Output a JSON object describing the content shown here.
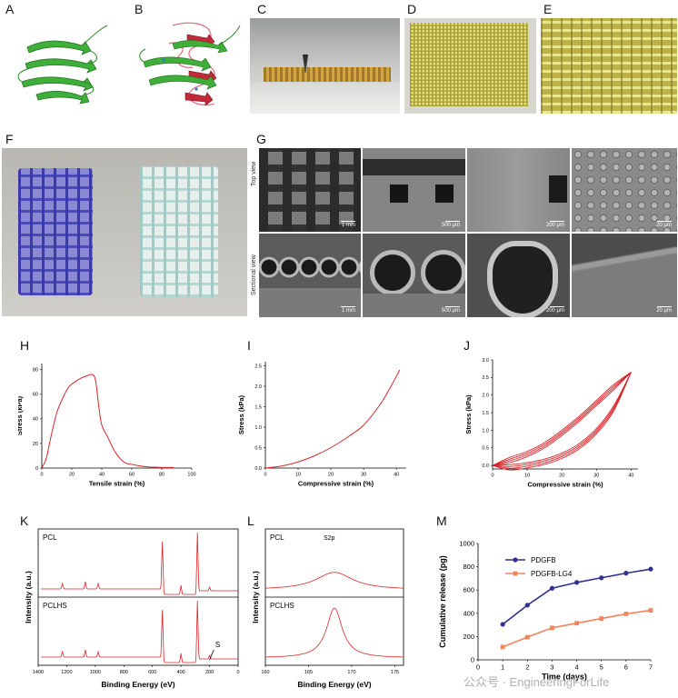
{
  "panels": {
    "A": "A",
    "B": "B",
    "C": "C",
    "D": "D",
    "E": "E",
    "F": "F",
    "G": "G",
    "H": "H",
    "I": "I",
    "J": "J",
    "K": "K",
    "L": "L",
    "M": "M"
  },
  "sem": {
    "top_view": "Top view",
    "sectional_view": "Sectional view",
    "scale_bars": [
      "1 mm",
      "500 μm",
      "200 μm",
      "20 μm",
      "1 mm",
      "500 μm",
      "200 μm",
      "20 μm"
    ]
  },
  "watermark": "公众号 · EngineeringForLife",
  "colors": {
    "line_red": "#d9262b",
    "pdgfb": "#2e3192",
    "pdgfb_lg4": "#f2855a"
  },
  "chart_data": [
    {
      "id": "H",
      "type": "line",
      "xlabel": "Tensile strain (%)",
      "ylabel": "Stress (kPa)",
      "xlim": [
        0,
        100
      ],
      "ylim": [
        0,
        85
      ],
      "xticks": [
        0,
        20,
        40,
        60,
        80,
        100
      ],
      "yticks": [
        0,
        20,
        40,
        60,
        80
      ],
      "x": [
        0,
        3,
        6,
        10,
        14,
        18,
        22,
        26,
        30,
        34,
        36,
        38,
        40,
        44,
        48,
        52,
        56,
        60,
        64,
        70,
        80,
        88
      ],
      "y": [
        0,
        8,
        25,
        45,
        57,
        66,
        70,
        73,
        75,
        76,
        70,
        50,
        35,
        25,
        15,
        8,
        4,
        3,
        2,
        1,
        0.5,
        0.5
      ]
    },
    {
      "id": "I",
      "type": "line",
      "xlabel": "Compressive strain (%)",
      "ylabel": "Stress (kPa)",
      "xlim": [
        0,
        43
      ],
      "ylim": [
        0,
        2.6
      ],
      "xticks": [
        0,
        10,
        20,
        30,
        40
      ],
      "yticks": [
        0.0,
        0.5,
        1.0,
        1.5,
        2.0,
        2.5
      ],
      "x": [
        0,
        5,
        10,
        15,
        20,
        25,
        30,
        35,
        38,
        41
      ],
      "y": [
        0,
        0.05,
        0.15,
        0.3,
        0.5,
        0.75,
        1.05,
        1.55,
        1.95,
        2.4
      ]
    },
    {
      "id": "J",
      "type": "line",
      "xlabel": "Compressive strain (%)",
      "ylabel": "Stress (kPa)",
      "xlim": [
        0,
        42
      ],
      "ylim": [
        -0.1,
        3.0
      ],
      "xticks": [
        0,
        10,
        20,
        30,
        40
      ],
      "yticks": [
        0.0,
        0.5,
        1.0,
        1.5,
        2.0,
        2.5,
        3.0
      ],
      "loading_x": [
        0,
        5,
        10,
        15,
        20,
        25,
        30,
        35,
        40
      ],
      "loading_y": [
        0,
        0.08,
        0.25,
        0.5,
        0.85,
        1.25,
        1.7,
        2.15,
        2.65
      ],
      "unloading_x": [
        40,
        35,
        30,
        25,
        20,
        15,
        10,
        5,
        0
      ],
      "unloading_y": [
        2.65,
        1.7,
        1.05,
        0.62,
        0.35,
        0.18,
        0.08,
        0.02,
        0
      ]
    },
    {
      "id": "K",
      "type": "line",
      "xlabel": "Binding Energy (eV)",
      "ylabel": "Intensity (a.u.)",
      "xlim": [
        1400,
        0
      ],
      "xticks": [
        1400,
        1200,
        1000,
        800,
        600,
        400,
        200,
        0
      ],
      "series": [
        {
          "name": "PCL"
        },
        {
          "name": "PCLHS"
        }
      ],
      "annotation": "S"
    },
    {
      "id": "L",
      "type": "line",
      "xlabel": "Binding Energy (eV)",
      "ylabel": "Intensity (a.u.)",
      "xlim": [
        160,
        176
      ],
      "xticks": [
        160,
        165,
        170,
        175
      ],
      "title": "S2p",
      "series": [
        {
          "name": "PCL",
          "peak": 168,
          "width": 2.6,
          "height": 0.35
        },
        {
          "name": "PCLHS",
          "peak": 168,
          "width": 1.1,
          "height": 1.0
        }
      ]
    },
    {
      "id": "M",
      "type": "line",
      "xlabel": "Time (days)",
      "ylabel": "Cumulative release (pg)",
      "xlim": [
        0,
        7
      ],
      "ylim": [
        0,
        1000
      ],
      "xticks": [
        0,
        1,
        2,
        3,
        4,
        5,
        6,
        7
      ],
      "yticks": [
        0,
        200,
        400,
        600,
        800,
        1000
      ],
      "x": [
        1,
        2,
        3,
        4,
        5,
        6,
        7
      ],
      "series": [
        {
          "name": "PDGFB",
          "values": [
            305,
            470,
            615,
            665,
            705,
            745,
            780
          ]
        },
        {
          "name": "PDGFB-LG4",
          "values": [
            110,
            195,
            275,
            315,
            355,
            395,
            425
          ]
        }
      ],
      "legend": "top-left"
    }
  ]
}
